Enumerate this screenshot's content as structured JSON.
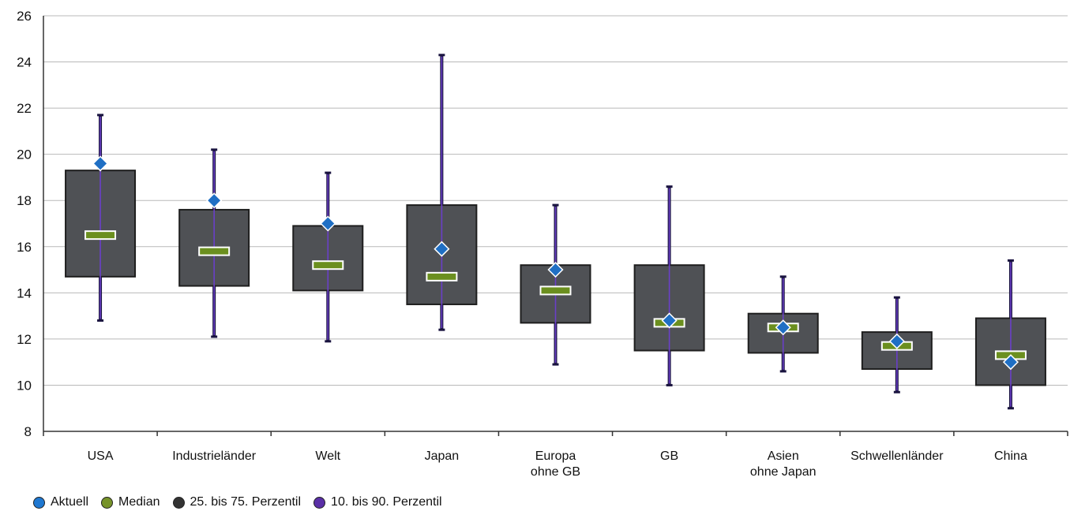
{
  "chart_data": {
    "type": "boxplot",
    "ylim": [
      8,
      26
    ],
    "yticks": [
      8,
      10,
      12,
      14,
      16,
      18,
      20,
      22,
      24,
      26
    ],
    "grid": "horizontal",
    "categories": [
      [
        "USA"
      ],
      [
        "Industrieländer"
      ],
      [
        "Welt"
      ],
      [
        "Japan"
      ],
      [
        "Europa",
        "ohne GB"
      ],
      [
        "GB"
      ],
      [
        "Asien",
        "ohne Japan"
      ],
      [
        "Schwellenländer"
      ],
      [
        "China"
      ]
    ],
    "series": [
      {
        "name": "10. bis 90. Perzentil",
        "low": [
          12.8,
          12.1,
          11.9,
          12.4,
          10.9,
          10.0,
          10.6,
          9.7,
          9.0
        ],
        "high": [
          21.7,
          20.2,
          19.2,
          24.3,
          17.8,
          18.6,
          14.7,
          13.8,
          15.4
        ]
      },
      {
        "name": "25. bis 75. Perzentil",
        "q1": [
          14.7,
          14.3,
          14.1,
          13.5,
          12.7,
          11.5,
          11.4,
          10.7,
          10.0
        ],
        "q3": [
          19.3,
          17.6,
          16.9,
          17.8,
          15.2,
          15.2,
          13.1,
          12.3,
          12.9
        ]
      },
      {
        "name": "Median",
        "values": [
          16.5,
          15.8,
          15.2,
          14.7,
          14.1,
          12.7,
          12.5,
          11.7,
          11.3
        ]
      },
      {
        "name": "Aktuell",
        "values": [
          19.6,
          18.0,
          17.0,
          15.9,
          15.0,
          12.8,
          12.5,
          11.9,
          11.0
        ]
      }
    ],
    "legend_position": "bottom-left"
  },
  "legend": [
    {
      "label": "Aktuell",
      "color": "#1f78d1"
    },
    {
      "label": "Median",
      "color": "#77932a"
    },
    {
      "label": "25. bis 75. Perzentil",
      "color": "#333333"
    },
    {
      "label": "10. bis 90. Perzentil",
      "color": "#5a2fa6"
    }
  ],
  "colors": {
    "box": "#4f5155",
    "whisker": "#1a1440",
    "whisker_inner": "#6a3fc8",
    "median": "#6b8f1f",
    "aktuell": "#1f6fc4",
    "grid": "#b9b9b9",
    "axis": "#333333"
  }
}
